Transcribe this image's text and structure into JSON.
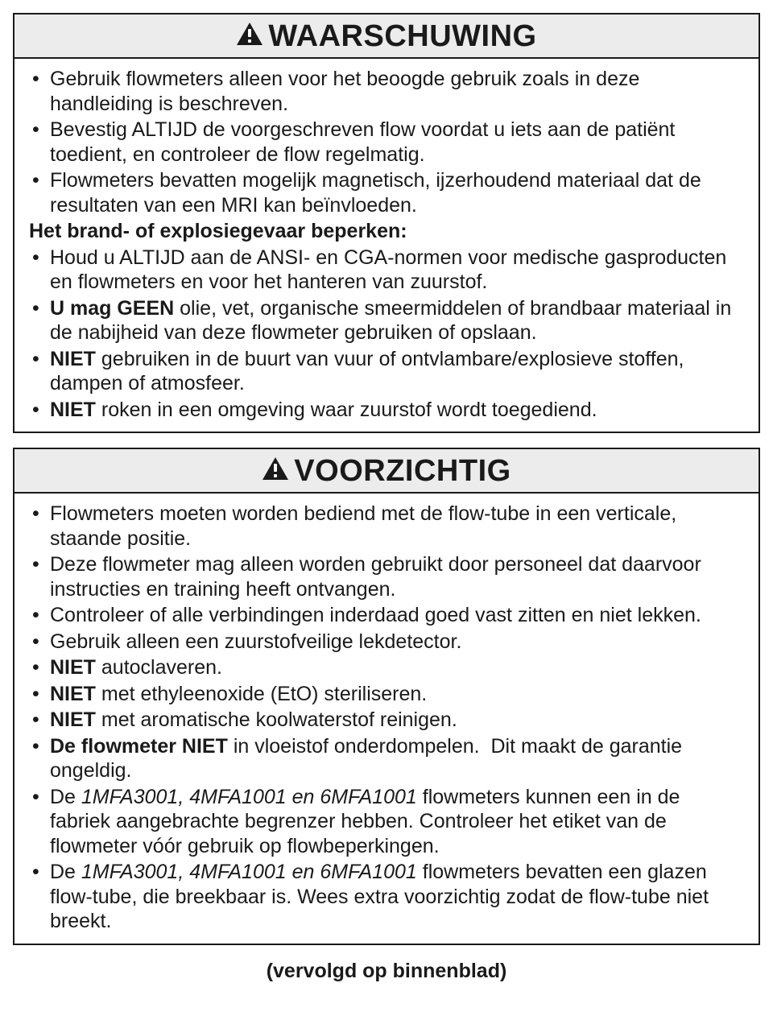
{
  "colors": {
    "border": "#1a1a1a",
    "header_bg": "#ececec",
    "text": "#1a1a1a",
    "background": "#ffffff"
  },
  "typography": {
    "title_fontsize": 38,
    "body_fontsize": 25,
    "line_height": 1.22
  },
  "warning": {
    "title": "WAARSCHUWING",
    "items": [
      {
        "html": "Gebruik flowmeters alleen voor het beoogde gebruik zoals in deze handleiding is beschreven."
      },
      {
        "html": "Bevestig ALTIJD de voorgeschreven flow voordat u iets aan de patiënt toedient, en controleer de flow regelmatig."
      },
      {
        "html": "Flowmeters bevatten mogelijk magnetisch, ijzerhoudend materiaal dat de resultaten van een MRI kan beïnvloeden."
      }
    ],
    "subheading": "Het brand- of explosiegevaar beperken:",
    "items2": [
      {
        "html": "Houd u ALTIJD aan de ANSI- en CGA-normen voor medische gasproducten en flowmeters en voor het hanteren van zuurstof."
      },
      {
        "html": "<span class=\"bold\">U mag GEEN</span> olie, vet, organische smeermiddelen of brandbaar materiaal in de nabijheid van deze flowmeter gebruiken of opslaan."
      },
      {
        "html": "<span class=\"bold\">NIET</span> gebruiken in de buurt van vuur of ontvlambare/explosieve stoffen, dampen of atmosfeer."
      },
      {
        "html": "<span class=\"bold\">NIET</span> roken in een omgeving waar zuurstof wordt toegediend."
      }
    ]
  },
  "caution": {
    "title": "VOORZICHTIG",
    "items": [
      {
        "html": "Flowmeters moeten worden bediend met de flow-tube in een verticale, staande positie."
      },
      {
        "html": "Deze flowmeter mag alleen worden gebruikt door personeel dat daarvoor instructies en training heeft ontvangen."
      },
      {
        "html": "Controleer of alle verbindingen inderdaad goed vast zitten en niet lekken."
      },
      {
        "html": "Gebruik alleen een zuurstofveilige lekdetector."
      },
      {
        "html": "<span class=\"bold\">NIET</span> autoclaveren."
      },
      {
        "html": "<span class=\"bold\">NIET</span> met ethyleenoxide (EtO) steriliseren."
      },
      {
        "html": "<span class=\"bold\">NIET</span> met aromatische koolwaterstof reinigen."
      },
      {
        "html": "<span class=\"bold\">De flowmeter NIET</span> in vloeistof onderdompelen.&nbsp; Dit maakt de garantie ongeldig."
      },
      {
        "html": "De <span class=\"italic\">1MFA3001, 4MFA1001 en 6MFA1001</span> flowmeters kunnen een in de fabriek aangebrachte begrenzer hebben. Controleer het etiket van de flowmeter vóór gebruik op flowbeperkingen."
      },
      {
        "html": "De <span class=\"italic\">1MFA3001, 4MFA1001 en 6MFA1001</span> flowmeters bevatten een glazen flow-tube, die breekbaar is. Wees extra voorzichtig zodat de flow-tube niet breekt."
      }
    ]
  },
  "footer": "(vervolgd op binnenblad)"
}
